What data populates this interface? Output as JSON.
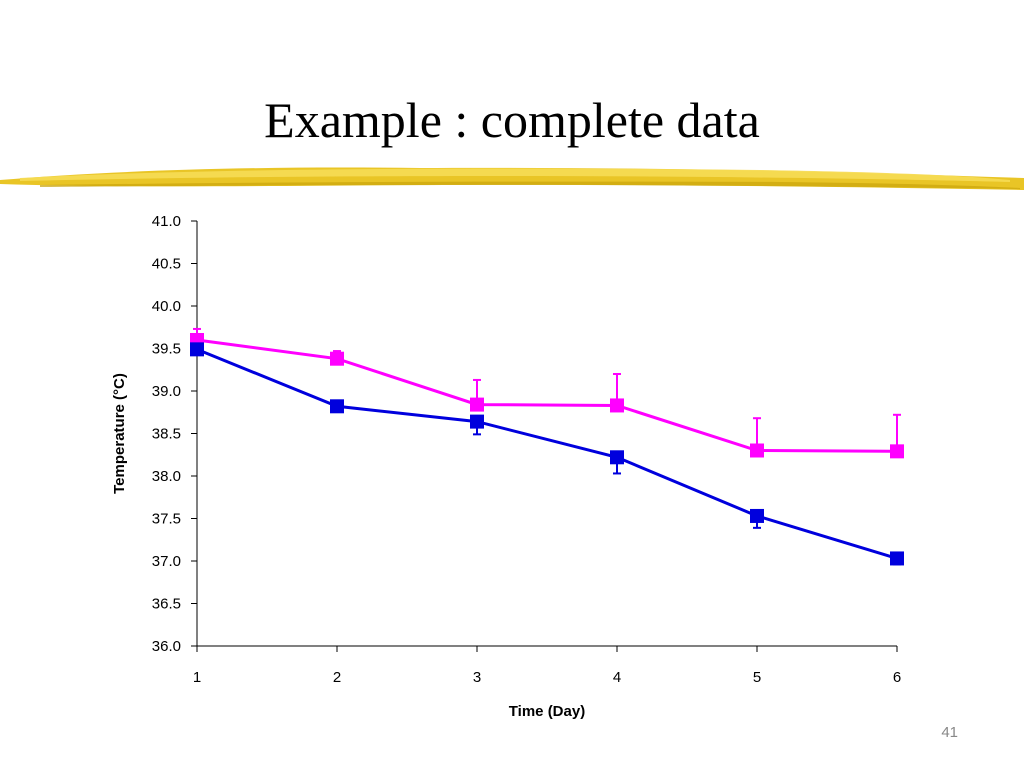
{
  "slide": {
    "title": "Example : complete data",
    "number": "41"
  },
  "colors": {
    "brush": "#e8c21a",
    "axis": "#000000"
  },
  "chart_data": {
    "type": "line",
    "title": "",
    "xlabel": "Time (Day)",
    "ylabel": "Temperature (°C)",
    "x": [
      1,
      2,
      3,
      4,
      5,
      6
    ],
    "xlim": [
      1,
      6
    ],
    "ylim": [
      36.0,
      41.0
    ],
    "yticks": [
      36.0,
      36.5,
      37.0,
      37.5,
      38.0,
      38.5,
      39.0,
      39.5,
      40.0,
      40.5,
      41.0
    ],
    "ytick_labels": [
      "36.0",
      "36.5",
      "37.0",
      "37.5",
      "38.0",
      "38.5",
      "39.0",
      "39.5",
      "40.0",
      "40.5",
      "41.0"
    ],
    "xtick_labels": [
      "1",
      "2",
      "3",
      "4",
      "5",
      "6"
    ],
    "grid": false,
    "legend": "none",
    "series": [
      {
        "name": "magenta-series",
        "color": "#ff00ff",
        "marker": "square",
        "values": [
          39.6,
          39.38,
          38.84,
          38.83,
          38.3,
          38.29
        ],
        "error_up": [
          0.13,
          0.09,
          0.29,
          0.37,
          0.38,
          0.43
        ],
        "error_down": [
          0,
          0,
          0,
          0,
          0,
          0
        ]
      },
      {
        "name": "blue-series",
        "color": "#0000dd",
        "marker": "square",
        "values": [
          39.49,
          38.82,
          38.64,
          38.22,
          37.53,
          37.03
        ],
        "error_up": [
          0,
          0,
          0,
          0,
          0,
          0
        ],
        "error_down": [
          0.05,
          0.05,
          0.15,
          0.19,
          0.14,
          0.07
        ]
      }
    ]
  }
}
